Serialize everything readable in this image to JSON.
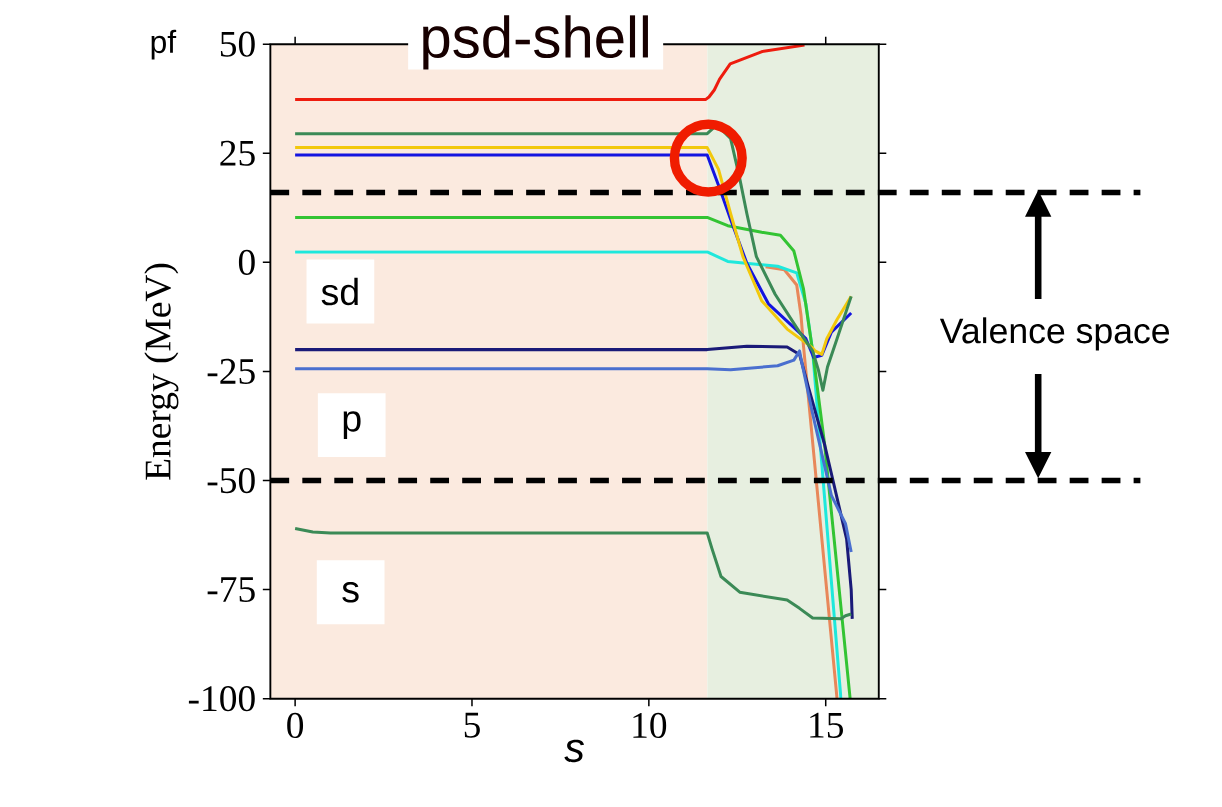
{
  "chart_data": {
    "type": "line",
    "title": "psd-shell",
    "xlabel": "s",
    "ylabel": "Energy (MeV)",
    "xlim": [
      -0.7,
      16.5
    ],
    "ylim": [
      -100,
      50
    ],
    "xticks": [
      0,
      5,
      10,
      15
    ],
    "yticks": [
      50,
      25,
      0,
      -25,
      -50,
      -75,
      -100
    ],
    "grid": false,
    "legend": false,
    "marker": "none",
    "line_style": "solid",
    "series": [
      {
        "color": "#ee1c0e",
        "x": [
          0,
          11.6,
          11.7,
          11.85,
          12.0,
          12.3,
          13.2,
          14.4
        ],
        "values": [
          37.3,
          37.3,
          37.9,
          39.5,
          42,
          45.5,
          48.3,
          49.8
        ]
      },
      {
        "color": "#e8875a",
        "x": [
          13.3,
          13.83,
          14.18,
          14.3,
          14.37,
          15.32
        ],
        "values": [
          -1,
          -1.7,
          -5.2,
          -12,
          -19,
          -100
        ]
      },
      {
        "color": "#1ee8dc",
        "x": [
          0,
          11.65,
          12.23,
          13.64,
          14.18,
          14.44,
          14.63,
          15.43
        ],
        "values": [
          2.4,
          2.4,
          0.2,
          -0.9,
          -2.4,
          -9.5,
          -20.3,
          -100
        ]
      },
      {
        "color": "#33c433",
        "x": [
          0,
          11.65,
          12.23,
          13.19,
          13.72,
          14.1,
          14.37,
          14.63,
          14.97,
          15.69
        ],
        "values": [
          10.3,
          10.3,
          8.4,
          6.9,
          6.2,
          2.6,
          -6,
          -20.3,
          -41.8,
          -100
        ]
      },
      {
        "color": "#1414e0",
        "x": [
          0,
          11.65,
          12,
          12.31,
          12.77,
          13.38,
          14.44,
          14.66,
          14.89,
          15.16,
          15.72
        ],
        "values": [
          24.6,
          24.6,
          17,
          9.9,
          -0.2,
          -9.5,
          -17.5,
          -21.8,
          -21.3,
          -16,
          -11.6
        ]
      },
      {
        "color": "#f2c80c",
        "x": [
          0,
          11.65,
          11.97,
          12.31,
          12.66,
          13.19,
          13.91,
          14.63,
          14.7,
          14.89,
          15.03,
          15.32,
          15.72
        ],
        "values": [
          26.3,
          26.3,
          21.3,
          11.2,
          1.3,
          -8.8,
          -15.3,
          -19.6,
          -20.3,
          -21.1,
          -17.5,
          -13.1,
          -7.8
        ]
      },
      {
        "color": "#3b8a56",
        "x": [
          0,
          11.65,
          11.92,
          12.31,
          12.57,
          12.77,
          13.04,
          13.57,
          14.26,
          14.63,
          14.79,
          14.92,
          15.05,
          15.32,
          15.72
        ],
        "values": [
          29.5,
          29.5,
          31.5,
          28.4,
          19.2,
          11.2,
          1.3,
          -7.3,
          -16,
          -20.3,
          -24.6,
          -29.3,
          -24,
          -17.5,
          -7.8
        ]
      },
      {
        "color": "#1a1a78",
        "x": [
          0,
          11.65,
          12.77,
          13.91,
          14.26,
          14.52,
          14.97,
          15.43,
          15.59,
          15.72,
          15.75
        ],
        "values": [
          -20,
          -20,
          -19.2,
          -19.4,
          -21.1,
          -28.9,
          -41.8,
          -57.8,
          -63.4,
          -75,
          -81.7
        ]
      },
      {
        "color": "#4a6fcf",
        "x": [
          0,
          11.65,
          12.31,
          13.64,
          14.1,
          14.26,
          14.3,
          14.63,
          15.16,
          15.56,
          15.72
        ],
        "values": [
          -24.4,
          -24.4,
          -24.6,
          -23.7,
          -22.4,
          -20.3,
          -22,
          -34.7,
          -53.4,
          -59.9,
          -66.4
        ]
      },
      {
        "color": "#3b8a56",
        "x": [
          0,
          0.5,
          1,
          11.65,
          11.78,
          12.04,
          12.57,
          13.91,
          14.26,
          14.63,
          15.43,
          15.56,
          15.72
        ],
        "values": [
          -61,
          -61.8,
          -62,
          -62,
          -65.5,
          -72,
          -75.6,
          -77.4,
          -79.3,
          -81.5,
          -81.7,
          -81,
          -80.6
        ]
      }
    ],
    "bands": [
      {
        "axis": "x",
        "from": -0.7,
        "to": 11.65,
        "color": "#fbeadf"
      },
      {
        "axis": "x",
        "from": 11.65,
        "to": 16.5,
        "color": "#e7efe0"
      }
    ],
    "ref_lines": [
      {
        "axis": "y",
        "value": 16,
        "color": "#000000",
        "line_style": "dashed"
      },
      {
        "axis": "y",
        "value": -50,
        "color": "#000000",
        "line_style": "dashed"
      }
    ],
    "annotations": [
      "pf",
      "sd",
      "p",
      "s",
      "Valence space"
    ]
  }
}
